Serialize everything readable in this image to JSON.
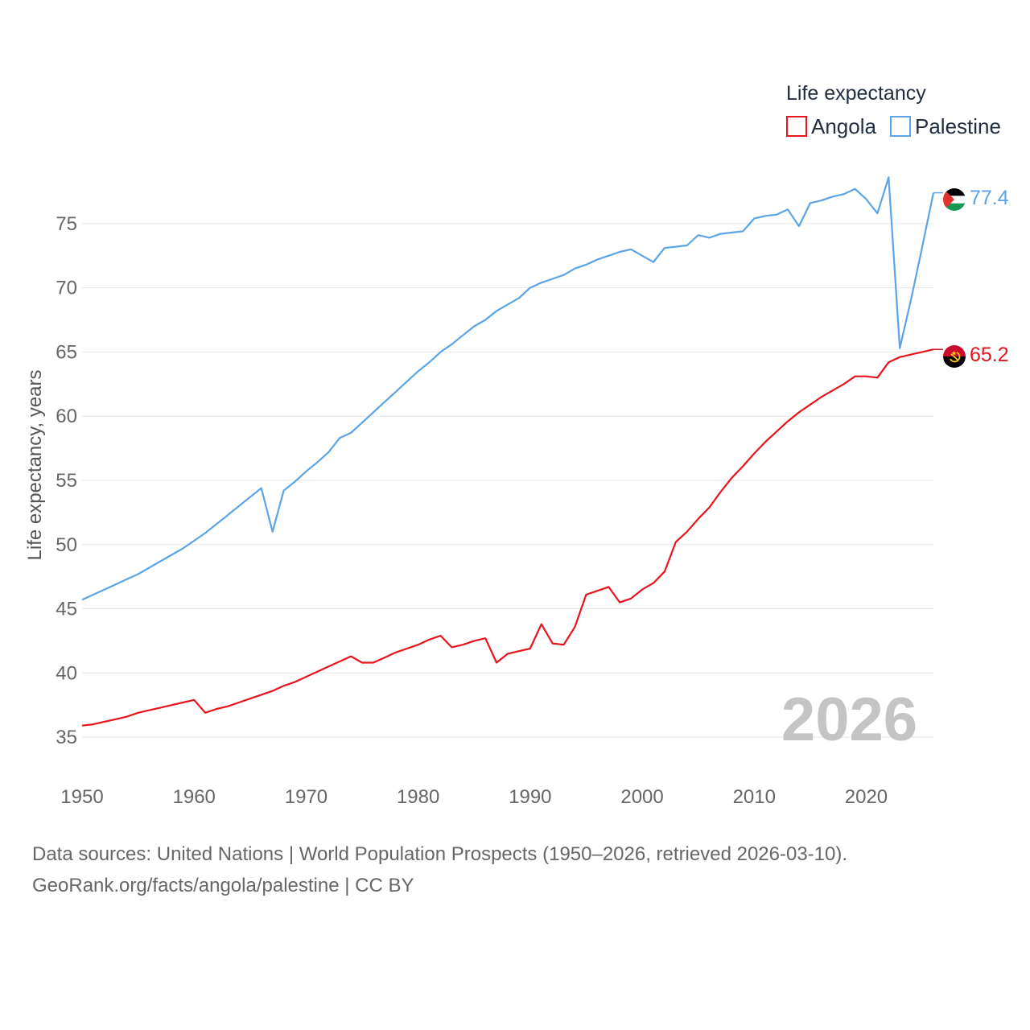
{
  "chart_data": {
    "type": "line",
    "title": "Life expectancy",
    "xlabel": "",
    "ylabel": "Life expectancy, years",
    "xlim": [
      1950,
      2026
    ],
    "ylim": [
      33,
      78
    ],
    "yticks": [
      35,
      40,
      45,
      50,
      55,
      60,
      65,
      70,
      75
    ],
    "xticks": [
      1950,
      1960,
      1970,
      1980,
      1990,
      2000,
      2010,
      2020
    ],
    "current_year": "2026",
    "legend_position": "top-right",
    "series": [
      {
        "name": "Angola",
        "color": "#e8141b",
        "end_label": "65.2",
        "x": [
          1950,
          1951,
          1952,
          1953,
          1954,
          1955,
          1956,
          1957,
          1958,
          1959,
          1960,
          1961,
          1962,
          1963,
          1964,
          1965,
          1966,
          1967,
          1968,
          1969,
          1970,
          1971,
          1972,
          1973,
          1974,
          1975,
          1976,
          1977,
          1978,
          1979,
          1980,
          1981,
          1982,
          1983,
          1984,
          1985,
          1986,
          1987,
          1988,
          1989,
          1990,
          1991,
          1992,
          1993,
          1994,
          1995,
          1996,
          1997,
          1998,
          1999,
          2000,
          2001,
          2002,
          2003,
          2004,
          2005,
          2006,
          2007,
          2008,
          2009,
          2010,
          2011,
          2012,
          2013,
          2014,
          2015,
          2016,
          2017,
          2018,
          2019,
          2020,
          2021,
          2022,
          2023,
          2024,
          2025,
          2026
        ],
        "values": [
          35.9,
          36.0,
          36.2,
          36.4,
          36.6,
          36.9,
          37.1,
          37.3,
          37.5,
          37.7,
          37.9,
          36.9,
          37.2,
          37.4,
          37.7,
          38.0,
          38.3,
          38.6,
          39.0,
          39.3,
          39.7,
          40.1,
          40.5,
          40.9,
          41.3,
          40.8,
          40.8,
          41.2,
          41.6,
          41.9,
          42.2,
          42.6,
          42.9,
          42.0,
          42.2,
          42.5,
          42.7,
          40.8,
          41.5,
          41.7,
          41.9,
          43.8,
          42.3,
          42.2,
          43.6,
          46.1,
          46.4,
          46.7,
          45.5,
          45.8,
          46.5,
          47.0,
          47.9,
          50.2,
          51.0,
          52.0,
          52.9,
          54.1,
          55.2,
          56.1,
          57.1,
          58.0,
          58.8,
          59.6,
          60.3,
          60.9,
          61.5,
          62.0,
          62.5,
          63.1,
          63.1,
          63.0,
          64.2,
          64.6,
          64.8,
          65.0,
          65.2
        ]
      },
      {
        "name": "Palestine",
        "color": "#5ba4e6",
        "end_label": "77.4",
        "x": [
          1950,
          1951,
          1952,
          1953,
          1954,
          1955,
          1956,
          1957,
          1958,
          1959,
          1960,
          1961,
          1962,
          1963,
          1964,
          1965,
          1966,
          1967,
          1968,
          1969,
          1970,
          1971,
          1972,
          1973,
          1974,
          1975,
          1976,
          1977,
          1978,
          1979,
          1980,
          1981,
          1982,
          1983,
          1984,
          1985,
          1986,
          1987,
          1988,
          1989,
          1990,
          1991,
          1992,
          1993,
          1994,
          1995,
          1996,
          1997,
          1998,
          1999,
          2000,
          2001,
          2002,
          2003,
          2004,
          2005,
          2006,
          2007,
          2008,
          2009,
          2010,
          2011,
          2012,
          2013,
          2014,
          2015,
          2016,
          2017,
          2018,
          2019,
          2020,
          2021,
          2022,
          2023,
          2024,
          2025,
          2026
        ],
        "values": [
          45.7,
          46.1,
          46.5,
          46.9,
          47.3,
          47.7,
          48.2,
          48.7,
          49.2,
          49.7,
          50.3,
          50.9,
          51.6,
          52.3,
          53.0,
          53.7,
          54.4,
          51.0,
          54.2,
          54.9,
          55.7,
          56.4,
          57.2,
          58.3,
          58.7,
          59.5,
          60.3,
          61.1,
          61.9,
          62.7,
          63.5,
          64.2,
          65.0,
          65.6,
          66.3,
          67.0,
          67.5,
          68.2,
          68.7,
          69.2,
          70.0,
          70.4,
          70.7,
          71.0,
          71.5,
          71.8,
          72.2,
          72.5,
          72.8,
          73.0,
          72.5,
          72.0,
          73.1,
          73.2,
          73.3,
          74.1,
          73.9,
          74.2,
          74.3,
          74.4,
          75.4,
          75.6,
          75.7,
          76.1,
          74.8,
          76.6,
          76.8,
          77.1,
          77.3,
          77.7,
          76.9,
          75.8,
          78.6,
          65.3,
          69.1,
          73.2,
          77.4
        ]
      }
    ]
  },
  "footer": {
    "line1": "Data sources: United Nations | World Population Prospects (1950–2026, retrieved 2026-03-10).",
    "line2": "GeoRank.org/facts/angola/palestine | CC BY"
  },
  "icons": {
    "angola": "angola-flag-icon",
    "palestine": "palestine-flag-icon"
  }
}
